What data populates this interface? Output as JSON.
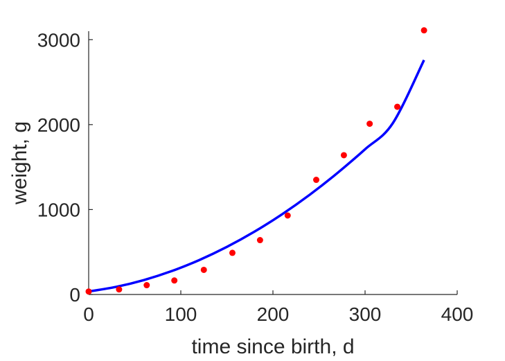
{
  "chart_data": {
    "type": "scatter",
    "title": "",
    "xlabel": "time since birth, d",
    "ylabel": "weight, g",
    "xlim": [
      0,
      400
    ],
    "ylim": [
      0,
      3100
    ],
    "xticks": [
      0,
      100,
      200,
      300,
      400
    ],
    "yticks": [
      0,
      1000,
      2000,
      3000
    ],
    "xtick_labels": [
      "0",
      "100",
      "200",
      "300",
      "400"
    ],
    "ytick_labels": [
      "0",
      "1000",
      "2000",
      "3000"
    ],
    "grid": false,
    "legend": "none",
    "series": [
      {
        "kind": "scatter",
        "color": "#ff0000",
        "x": [
          0,
          33,
          63,
          93,
          125,
          156,
          186,
          216,
          247,
          277,
          305,
          335,
          364
        ],
        "y": [
          35,
          60,
          110,
          165,
          290,
          490,
          640,
          930,
          1350,
          1640,
          2010,
          2210,
          3110
        ]
      },
      {
        "kind": "line",
        "color": "#0000ff",
        "x": [
          0,
          30,
          60,
          90,
          120,
          150,
          180,
          210,
          240,
          270,
          300,
          330,
          364
        ],
        "y": [
          35,
          90,
          170,
          275,
          405,
          560,
          740,
          945,
          1175,
          1430,
          1710,
          2015,
          2760
        ]
      }
    ]
  }
}
